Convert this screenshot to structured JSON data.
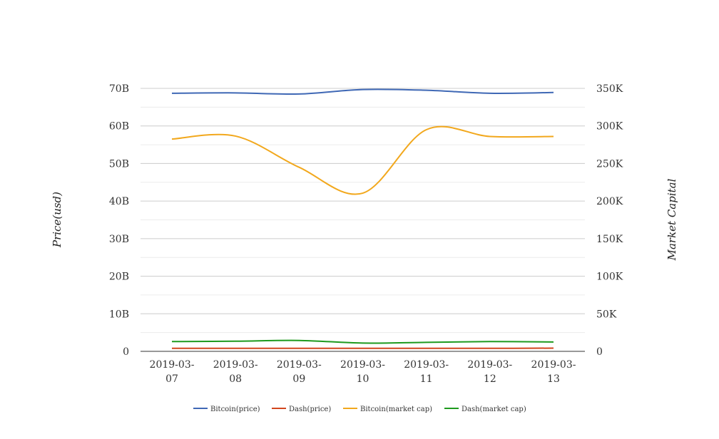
{
  "chart_data": {
    "type": "line",
    "categories": [
      [
        "2019-03-",
        "07"
      ],
      [
        "2019-03-",
        "08"
      ],
      [
        "2019-03-",
        "09"
      ],
      [
        "2019-03-",
        "10"
      ],
      [
        "2019-03-",
        "11"
      ],
      [
        "2019-03-",
        "12"
      ],
      [
        "2019-03-",
        "13"
      ]
    ],
    "y_left": {
      "label": "Price(usd)",
      "ylim": [
        0,
        70000000000
      ],
      "ticks": [
        0,
        10000000000,
        20000000000,
        30000000000,
        40000000000,
        50000000000,
        60000000000,
        70000000000
      ],
      "tick_labels": [
        "0",
        "10B",
        "20B",
        "30B",
        "40B",
        "50B",
        "60B",
        "70B"
      ]
    },
    "y_right": {
      "label": "Market Capital",
      "ylim": [
        0,
        350000
      ],
      "ticks": [
        0,
        50000,
        100000,
        150000,
        200000,
        250000,
        300000,
        350000
      ],
      "tick_labels": [
        "0",
        "50K",
        "100K",
        "150K",
        "200K",
        "250K",
        "300K",
        "350K"
      ]
    },
    "grid": true,
    "legend_position": "bottom-center",
    "series": [
      {
        "name": "Bitcoin(price)",
        "color": "#3f68b5",
        "values": [
          68700000000,
          68800000000,
          68500000000,
          69700000000,
          69500000000,
          68700000000,
          68900000000
        ]
      },
      {
        "name": "Dash(price)",
        "color": "#d2461e",
        "values": [
          800000000,
          800000000,
          800000000,
          800000000,
          800000000,
          800000000,
          850000000
        ]
      },
      {
        "name": "Bitcoin(market cap)",
        "color": "#f2a81d",
        "values": [
          56500000000,
          57300000000,
          49000000000,
          42100000000,
          59000000000,
          57200000000,
          57200000000
        ]
      },
      {
        "name": "Dash(market cap)",
        "color": "#1e9a1e",
        "values": [
          2600000000,
          2700000000,
          2900000000,
          2200000000,
          2400000000,
          2600000000,
          2500000000
        ]
      }
    ]
  }
}
